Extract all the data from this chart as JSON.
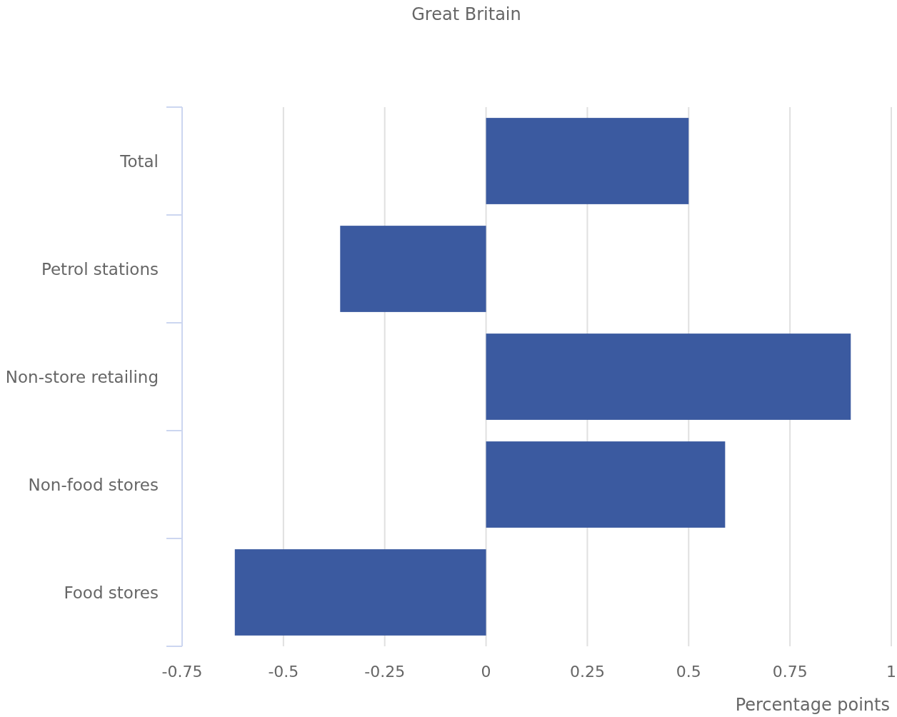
{
  "chart_data": {
    "type": "bar",
    "orientation": "horizontal",
    "title": "Great Britain",
    "xlabel": "Percentage points",
    "categories": [
      "Total",
      "Petrol stations",
      "Non-store retailing",
      "Non-food stores",
      "Food stores"
    ],
    "values": [
      0.5,
      -0.36,
      0.9,
      0.59,
      -0.62
    ],
    "color": "#3b5aa0",
    "xlim": [
      -0.75,
      1
    ],
    "xticks": [
      -0.75,
      -0.5,
      -0.25,
      0,
      0.25,
      0.5,
      0.75,
      1
    ],
    "grid": "x"
  }
}
